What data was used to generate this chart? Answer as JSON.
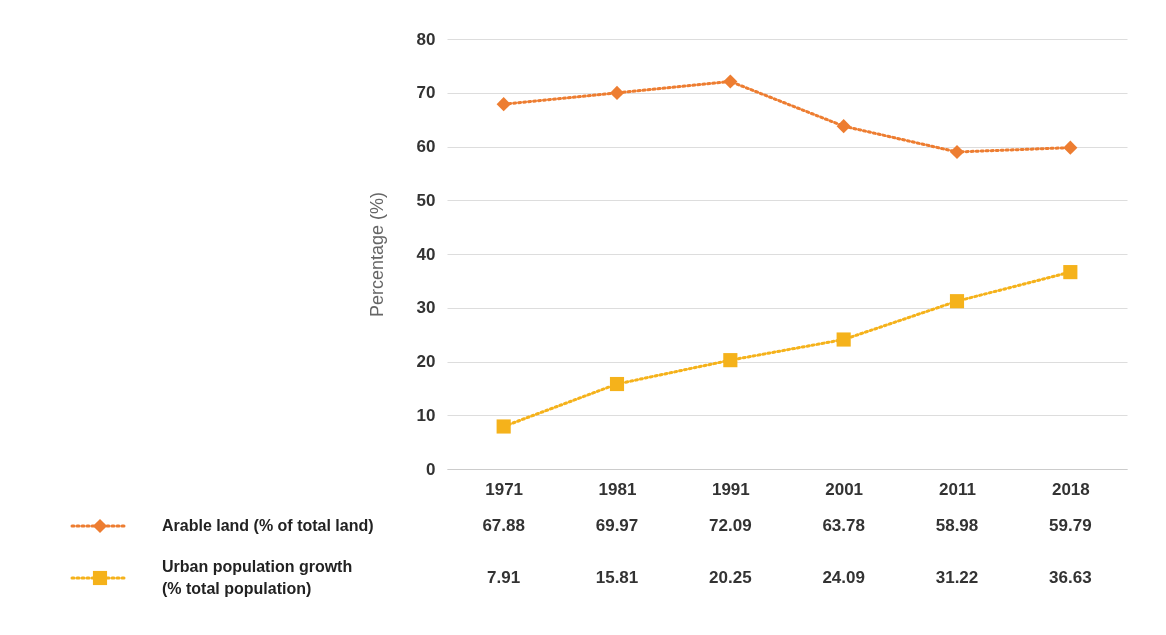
{
  "chart_data": {
    "type": "line",
    "ylabel": "Percentage (%)",
    "categories": [
      "1971",
      "1981",
      "1991",
      "2001",
      "2011",
      "2018"
    ],
    "series": [
      {
        "name": "Arable land (% of total land)",
        "color": "#ed7d31",
        "marker": "diamond",
        "values": [
          67.88,
          69.97,
          72.09,
          63.78,
          58.98,
          59.79
        ]
      },
      {
        "name": "Urban population growth (% total population)",
        "color": "#f5b21b",
        "marker": "square",
        "values": [
          7.91,
          15.81,
          20.25,
          24.09,
          31.22,
          36.63
        ]
      }
    ],
    "ylim": [
      0,
      80
    ],
    "yticks": [
      0,
      10,
      20,
      30,
      40,
      50,
      60,
      70,
      80
    ],
    "grid": "y",
    "line_style": "dotted",
    "legend": "bottom",
    "data_labels": true
  }
}
